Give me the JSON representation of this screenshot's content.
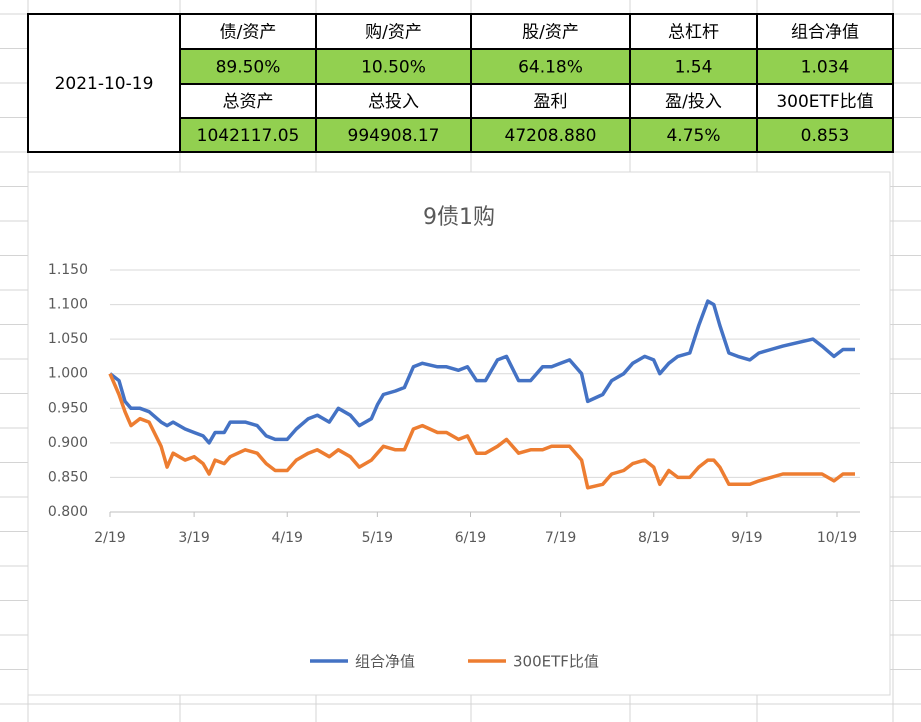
{
  "table": {
    "date": "2021-10-19",
    "rows": [
      [
        "债/资产",
        "购/资产",
        "股/资产",
        "总杠杆",
        "组合净值"
      ],
      [
        "89.50%",
        "10.50%",
        "64.18%",
        "1.54",
        "1.034"
      ],
      [
        "总资产",
        "总投入",
        "盈利",
        "盈/投入",
        "300ETF比值"
      ],
      [
        "1042117.05",
        "994908.17",
        "47208.880",
        "4.75%",
        "0.853"
      ]
    ]
  },
  "chart_data": {
    "type": "line",
    "title": "9债1购",
    "x": [
      "2/19",
      "2/22",
      "2/24",
      "2/26",
      "3/1",
      "3/4",
      "3/8",
      "3/10",
      "3/12",
      "3/16",
      "3/19",
      "3/22",
      "3/24",
      "3/26",
      "3/29",
      "3/31",
      "4/5",
      "4/9",
      "4/12",
      "4/15",
      "4/19",
      "4/22",
      "4/26",
      "4/29",
      "5/3",
      "5/6",
      "5/10",
      "5/13",
      "5/17",
      "5/19",
      "5/21",
      "5/25",
      "5/28",
      "5/31",
      "6/3",
      "6/8",
      "6/11",
      "6/15",
      "6/18",
      "6/21",
      "6/24",
      "6/28",
      "7/1",
      "7/5",
      "7/9",
      "7/13",
      "7/16",
      "7/19",
      "7/22",
      "7/26",
      "7/28",
      "8/2",
      "8/5",
      "8/9",
      "8/12",
      "8/16",
      "8/19",
      "8/21",
      "8/24",
      "8/27",
      "8/31",
      "9/3",
      "9/6",
      "9/8",
      "9/10",
      "9/13",
      "9/16",
      "9/20",
      "9/23",
      "9/27",
      "10/1",
      "10/6",
      "10/11",
      "10/14",
      "10/18",
      "10/21",
      "10/25"
    ],
    "series": [
      {
        "name": "组合净值",
        "color": "#4472c4",
        "values": [
          1.0,
          0.99,
          0.96,
          0.95,
          0.95,
          0.945,
          0.93,
          0.925,
          0.93,
          0.92,
          0.915,
          0.91,
          0.9,
          0.915,
          0.915,
          0.93,
          0.93,
          0.925,
          0.91,
          0.905,
          0.905,
          0.92,
          0.935,
          0.94,
          0.93,
          0.95,
          0.94,
          0.925,
          0.935,
          0.955,
          0.97,
          0.975,
          0.98,
          1.01,
          1.015,
          1.01,
          1.01,
          1.005,
          1.01,
          0.99,
          0.99,
          1.02,
          1.025,
          0.99,
          0.99,
          1.01,
          1.01,
          1.015,
          1.02,
          1.0,
          0.96,
          0.97,
          0.99,
          1.0,
          1.015,
          1.025,
          1.02,
          1.0,
          1.015,
          1.025,
          1.03,
          1.07,
          1.105,
          1.1,
          1.07,
          1.03,
          1.025,
          1.02,
          1.03,
          1.035,
          1.04,
          1.045,
          1.05,
          1.04,
          1.025,
          1.035,
          1.035
        ]
      },
      {
        "name": "300ETF比值",
        "color": "#ed7d31",
        "values": [
          1.0,
          0.97,
          0.945,
          0.925,
          0.935,
          0.93,
          0.895,
          0.865,
          0.885,
          0.875,
          0.88,
          0.87,
          0.855,
          0.875,
          0.87,
          0.88,
          0.89,
          0.885,
          0.87,
          0.86,
          0.86,
          0.875,
          0.885,
          0.89,
          0.88,
          0.89,
          0.88,
          0.865,
          0.875,
          0.885,
          0.895,
          0.89,
          0.89,
          0.92,
          0.925,
          0.915,
          0.915,
          0.905,
          0.91,
          0.885,
          0.885,
          0.895,
          0.905,
          0.885,
          0.89,
          0.89,
          0.895,
          0.895,
          0.895,
          0.875,
          0.835,
          0.84,
          0.855,
          0.86,
          0.87,
          0.875,
          0.865,
          0.84,
          0.86,
          0.85,
          0.85,
          0.865,
          0.875,
          0.875,
          0.865,
          0.84,
          0.84,
          0.84,
          0.845,
          0.85,
          0.855,
          0.855,
          0.855,
          0.855,
          0.845,
          0.855,
          0.855
        ]
      }
    ],
    "ylim": [
      0.8,
      1.15
    ],
    "yticks": [
      {
        "value": 0.8,
        "label": "0.800"
      },
      {
        "value": 0.85,
        "label": "0.850"
      },
      {
        "value": 0.9,
        "label": "0.900"
      },
      {
        "value": 0.95,
        "label": "0.950"
      },
      {
        "value": 1,
        "label": "1.000"
      },
      {
        "value": 1.05,
        "label": "1.050"
      },
      {
        "value": 1.1,
        "label": "1.100"
      },
      {
        "value": 1.15,
        "label": "1.150"
      }
    ],
    "xticks": [
      "2/19",
      "3/19",
      "4/19",
      "5/19",
      "6/19",
      "7/19",
      "8/19",
      "9/19",
      "10/19"
    ],
    "grid": true,
    "legend": "bottom"
  }
}
